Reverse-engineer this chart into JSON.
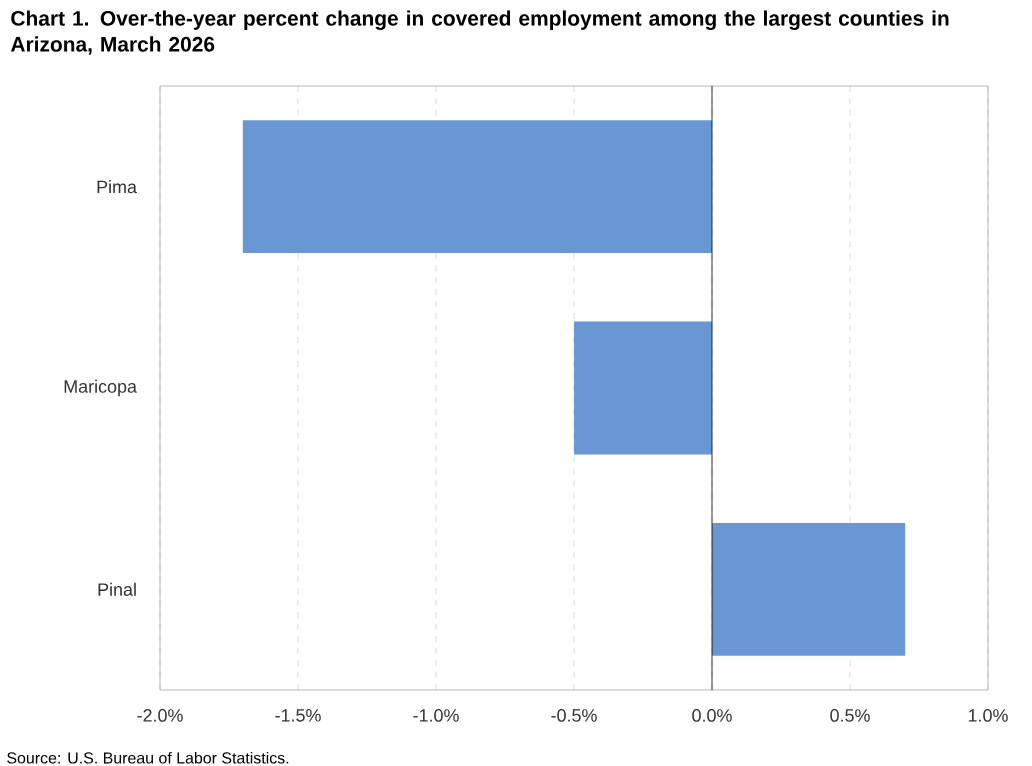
{
  "chart_data": {
    "type": "bar",
    "orientation": "horizontal",
    "title": "Chart 1. Over-the-year percent change in covered employment among the largest counties in Arizona, March 2026",
    "categories": [
      "Pima",
      "Maricopa",
      "Pinal"
    ],
    "values": [
      -1.7,
      -0.5,
      0.7
    ],
    "color": "#6897d4",
    "xlim": [
      -2.0,
      1.0
    ],
    "xticks": [
      {
        "value": -2.0,
        "label": "-2.0%"
      },
      {
        "value": -1.5,
        "label": "-1.5%"
      },
      {
        "value": -1.0,
        "label": "-1.0%"
      },
      {
        "value": -0.5,
        "label": "-0.5%"
      },
      {
        "value": 0.0,
        "label": "0.0%"
      },
      {
        "value": 0.5,
        "label": "0.5%"
      },
      {
        "value": 1.0,
        "label": "1.0%"
      }
    ],
    "grid": "x",
    "annotations": [
      "Source: U.S. Bureau of Labor Statistics."
    ]
  }
}
